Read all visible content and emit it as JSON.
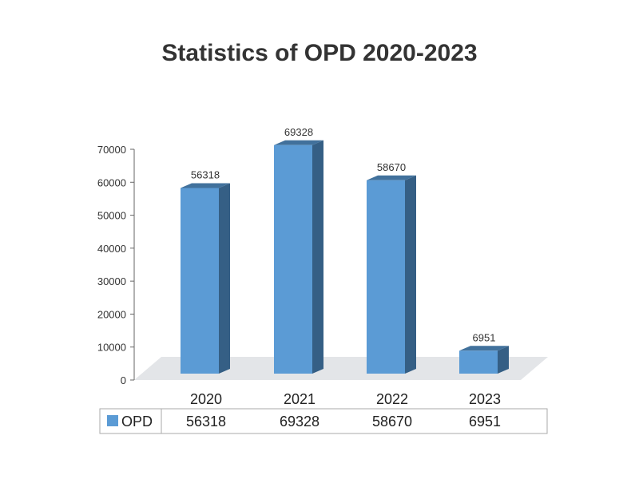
{
  "chart_data": {
    "type": "bar",
    "title": "Statistics of OPD 2020-2023",
    "categories": [
      "2020",
      "2021",
      "2022",
      "2023"
    ],
    "series": [
      {
        "name": "OPD",
        "values": [
          56318,
          69328,
          58670,
          6951
        ]
      }
    ],
    "ylim": [
      0,
      70000
    ],
    "yticks": [
      "0",
      "10000",
      "20000",
      "30000",
      "40000",
      "50000",
      "60000",
      "70000"
    ],
    "data_labels": [
      "56318",
      "69328",
      "58670",
      "6951"
    ],
    "legend_position": "bottom data table",
    "grid": false,
    "style": "3d",
    "colors": {
      "bar_front": "#5b9bd5",
      "bar_top": "#41719c",
      "bar_side": "#355f85",
      "floor": "#e3e5e8"
    }
  }
}
